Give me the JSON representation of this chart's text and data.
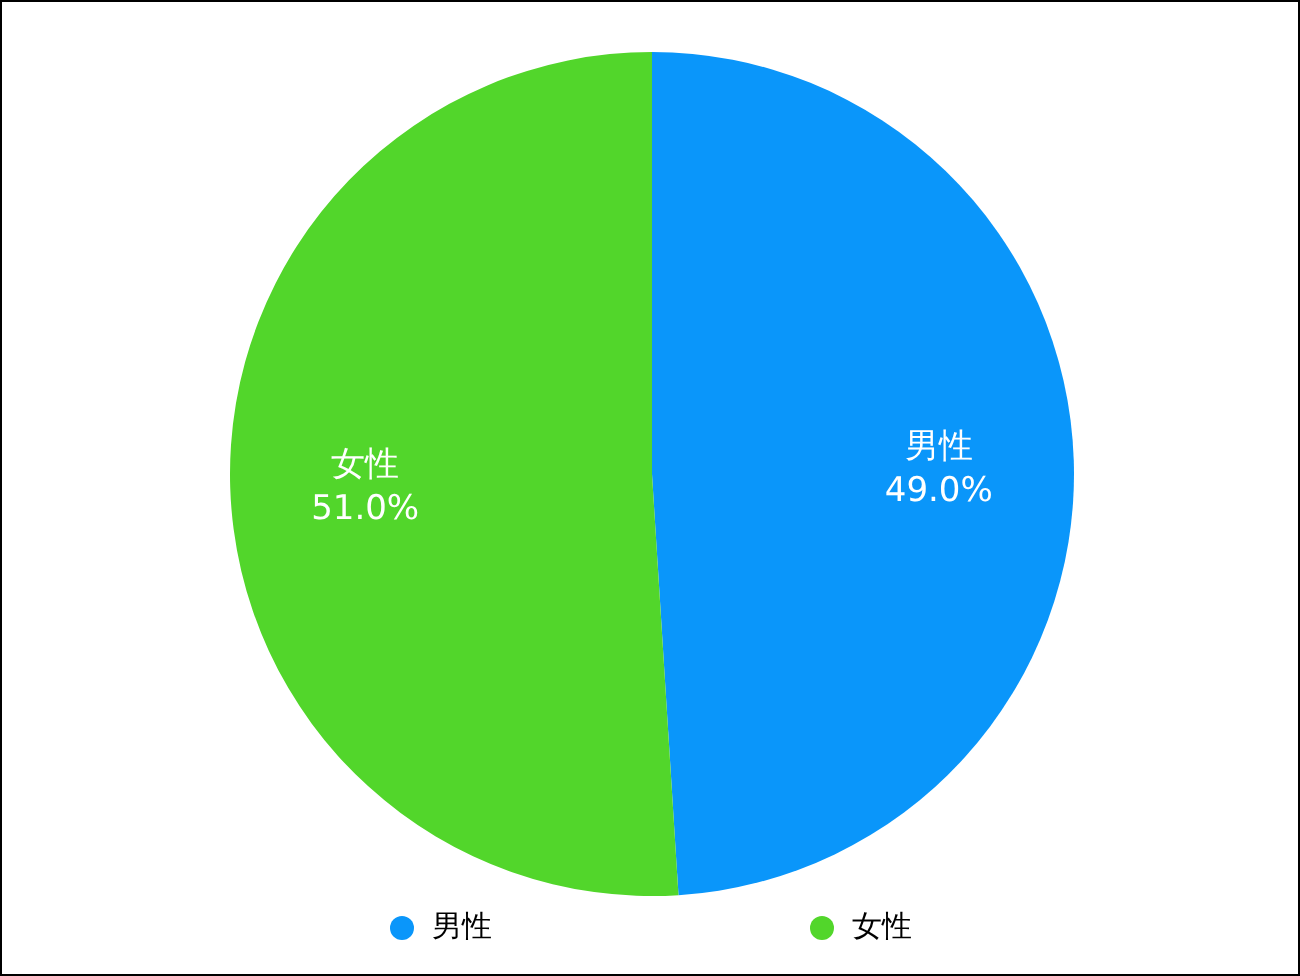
{
  "chart_data": {
    "type": "pie",
    "categories": [
      "男性",
      "女性"
    ],
    "values": [
      49.0,
      51.0
    ],
    "colors": [
      "#0a96fa",
      "#52d62b"
    ],
    "value_labels": [
      "49.0%",
      "51.0%"
    ],
    "legend": "bottom"
  }
}
